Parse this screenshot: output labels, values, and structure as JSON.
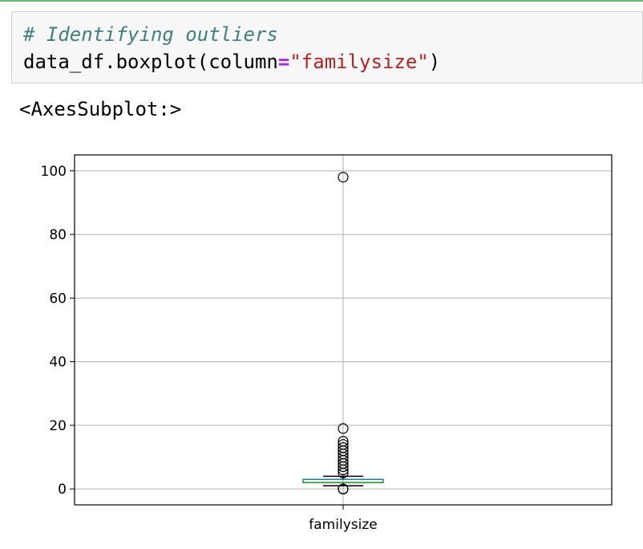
{
  "code": {
    "comment": "# Identifying outliers",
    "call_prefix": "data_df.boxplot(column",
    "operator": "=",
    "string_arg": "\"familysize\"",
    "call_suffix": ")"
  },
  "output_repr": "<AxesSubplot:>",
  "colors": {
    "code_background": "#f7f7f7",
    "comment": "#408080",
    "string": "#ba2121",
    "operator": "#aa22ff",
    "box": "#1f77b4",
    "median": "#2ca02c"
  },
  "chart_data": {
    "type": "box",
    "categories": [
      "familysize"
    ],
    "yticks": [
      "0",
      "20",
      "40",
      "60",
      "80",
      "100"
    ],
    "ylim": [
      -5,
      105
    ],
    "grid": true,
    "box": {
      "min": 1,
      "q1": 2,
      "median": 2,
      "q3": 3,
      "max": 4,
      "outliers": [
        0,
        0,
        0,
        5,
        6,
        7,
        8,
        9,
        10,
        11,
        12,
        13,
        14,
        15,
        19,
        98
      ]
    }
  }
}
